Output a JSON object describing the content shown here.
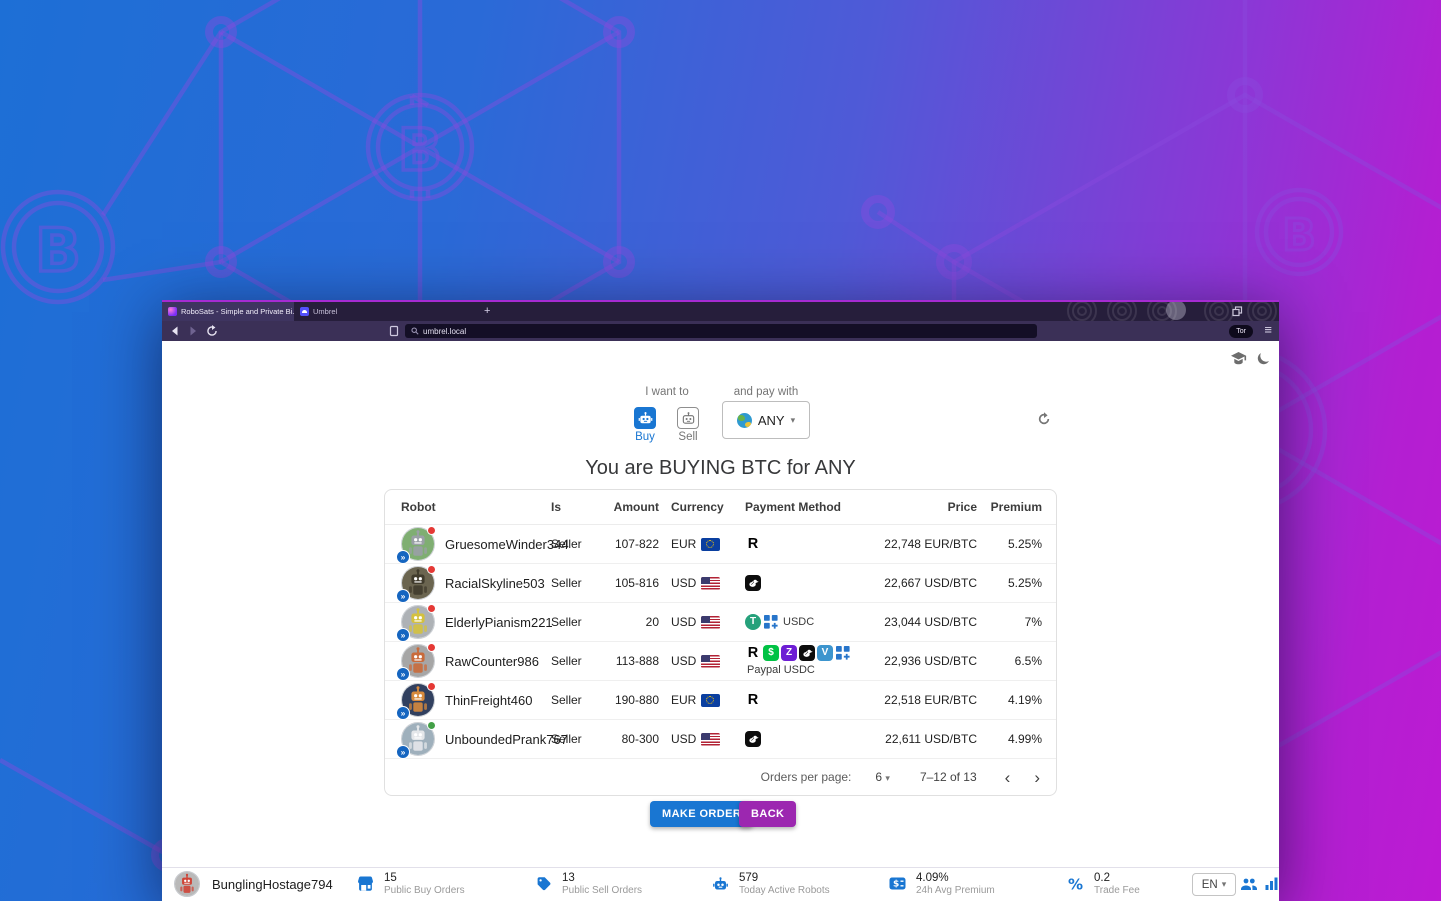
{
  "app": {
    "accent": "#1976d2",
    "secondary": "#9c27b0",
    "badge_blue": "#1565c0"
  },
  "glyphs": {
    "dropdown_caret": "▾",
    "chevron_left": "‹",
    "chevron_right": "›",
    "badge": "»",
    "close_tab": "×",
    "new_tab": "+",
    "menu": "≡"
  },
  "browser": {
    "tabs": [
      {
        "title": "RoboSats - Simple and Private Bi...",
        "favicon": "robosats-icon"
      },
      {
        "title": "Umbrel",
        "favicon": "umbrel-icon"
      }
    ],
    "url": "umbrel.local",
    "tor_label": "Tor"
  },
  "controls": {
    "i_want_to_label": "I want to",
    "buy_label": "Buy",
    "sell_label": "Sell",
    "and_pay_with_label": "and pay with",
    "payment_currency": "ANY"
  },
  "page_title": "You are BUYING BTC for ANY",
  "book": {
    "headers": [
      "Robot",
      "Is",
      "Amount",
      "Currency",
      "Payment Method",
      "Price",
      "Premium"
    ],
    "rows": [
      {
        "nickname": "GruesomeWinder344",
        "is": "Seller",
        "amount": "107-822",
        "currency": "EUR",
        "flag": "eu",
        "payments": [
          "revolut"
        ],
        "payment_text": "",
        "price": "22,748 EUR/BTC",
        "premium": "5.25%",
        "status_dot": "#e53935",
        "avatar": {
          "bg": "#7fae72",
          "body": "#9aa0a6"
        }
      },
      {
        "nickname": "RacialSkyline503",
        "is": "Seller",
        "amount": "105-816",
        "currency": "USD",
        "flag": "us",
        "payments": [
          "bird"
        ],
        "payment_text": "",
        "price": "22,667 USD/BTC",
        "premium": "5.25%",
        "status_dot": "#e53935",
        "avatar": {
          "bg": "#6b6550",
          "body": "#413c2d"
        }
      },
      {
        "nickname": "ElderlyPianism221",
        "is": "Seller",
        "amount": "20",
        "currency": "USD",
        "flag": "us",
        "payments": [
          "tether",
          "squares"
        ],
        "payment_text": "USDC",
        "price": "23,044 USD/BTC",
        "premium": "7%",
        "status_dot": "#e53935",
        "avatar": {
          "bg": "#aeb2b6",
          "body": "#d4c13f"
        }
      },
      {
        "nickname": "RawCounter986",
        "is": "Seller",
        "amount": "113-888",
        "currency": "USD",
        "flag": "us",
        "payments": [
          "revolut",
          "cashapp",
          "zelle",
          "bird",
          "venmo",
          "squares"
        ],
        "payment_text": "Paypal USDC",
        "price": "22,936 USD/BTC",
        "premium": "6.5%",
        "status_dot": "#e53935",
        "avatar": {
          "bg": "#a6a6a6",
          "body": "#c96b3b"
        }
      },
      {
        "nickname": "ThinFreight460",
        "is": "Seller",
        "amount": "190-880",
        "currency": "EUR",
        "flag": "eu",
        "payments": [
          "revolut"
        ],
        "payment_text": "",
        "price": "22,518 EUR/BTC",
        "premium": "4.19%",
        "status_dot": "#e53935",
        "avatar": {
          "bg": "#31405f",
          "body": "#d78a3d"
        }
      },
      {
        "nickname": "UnboundedPrank767",
        "is": "Seller",
        "amount": "80-300",
        "currency": "USD",
        "flag": "us",
        "payments": [
          "bird"
        ],
        "payment_text": "",
        "price": "22,611 USD/BTC",
        "premium": "4.99%",
        "status_dot": "#43a047",
        "avatar": {
          "bg": "#9fb0bc",
          "body": "#e4e7ea"
        }
      }
    ]
  },
  "pagination": {
    "label": "Orders per page:",
    "per_page": "6",
    "range": "7–12 of 13"
  },
  "actions": {
    "make_order": "MAKE ORDER",
    "back": "BACK"
  },
  "footer": {
    "nickname": "BunglingHostage794",
    "avatar": {
      "bg": "#b9b9b9",
      "body": "#cf4437"
    },
    "stats": [
      {
        "icon": "storefront-icon",
        "value": "15",
        "label": "Public Buy Orders"
      },
      {
        "icon": "sell-tag-icon",
        "value": "13",
        "label": "Public Sell Orders"
      },
      {
        "icon": "robot-icon",
        "value": "579",
        "label": "Today Active Robots"
      },
      {
        "icon": "price-change-icon",
        "value": "4.09%",
        "label": "24h Avg Premium"
      },
      {
        "icon": "percent-icon",
        "value": "0.2",
        "label": "Trade Fee"
      }
    ],
    "language": "EN"
  }
}
